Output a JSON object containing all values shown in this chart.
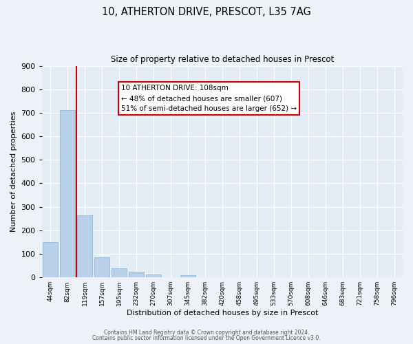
{
  "title_line1": "10, ATHERTON DRIVE, PRESCOT, L35 7AG",
  "title_line2": "Size of property relative to detached houses in Prescot",
  "xlabel": "Distribution of detached houses by size in Prescot",
  "ylabel": "Number of detached properties",
  "bin_labels": [
    "44sqm",
    "82sqm",
    "119sqm",
    "157sqm",
    "195sqm",
    "232sqm",
    "270sqm",
    "307sqm",
    "345sqm",
    "382sqm",
    "420sqm",
    "458sqm",
    "495sqm",
    "533sqm",
    "570sqm",
    "608sqm",
    "646sqm",
    "683sqm",
    "721sqm",
    "758sqm",
    "796sqm"
  ],
  "bar_heights": [
    150,
    712,
    263,
    85,
    38,
    25,
    12,
    0,
    10,
    0,
    0,
    0,
    0,
    0,
    0,
    0,
    0,
    0,
    0,
    0,
    0
  ],
  "bar_color": "#b8d0ea",
  "bar_edge_color": "#8ab0d0",
  "marker_line_color": "#cc0000",
  "annotation_title": "10 ATHERTON DRIVE: 108sqm",
  "annotation_line2": "← 48% of detached houses are smaller (607)",
  "annotation_line3": "51% of semi-detached houses are larger (652) →",
  "annotation_box_color": "#cc0000",
  "ylim": [
    0,
    900
  ],
  "yticks": [
    0,
    100,
    200,
    300,
    400,
    500,
    600,
    700,
    800,
    900
  ],
  "footer_line1": "Contains HM Land Registry data © Crown copyright and database right 2024.",
  "footer_line2": "Contains public sector information licensed under the Open Government Licence v3.0.",
  "bg_color": "#eef2f8",
  "plot_bg_color": "#e4ecf6"
}
